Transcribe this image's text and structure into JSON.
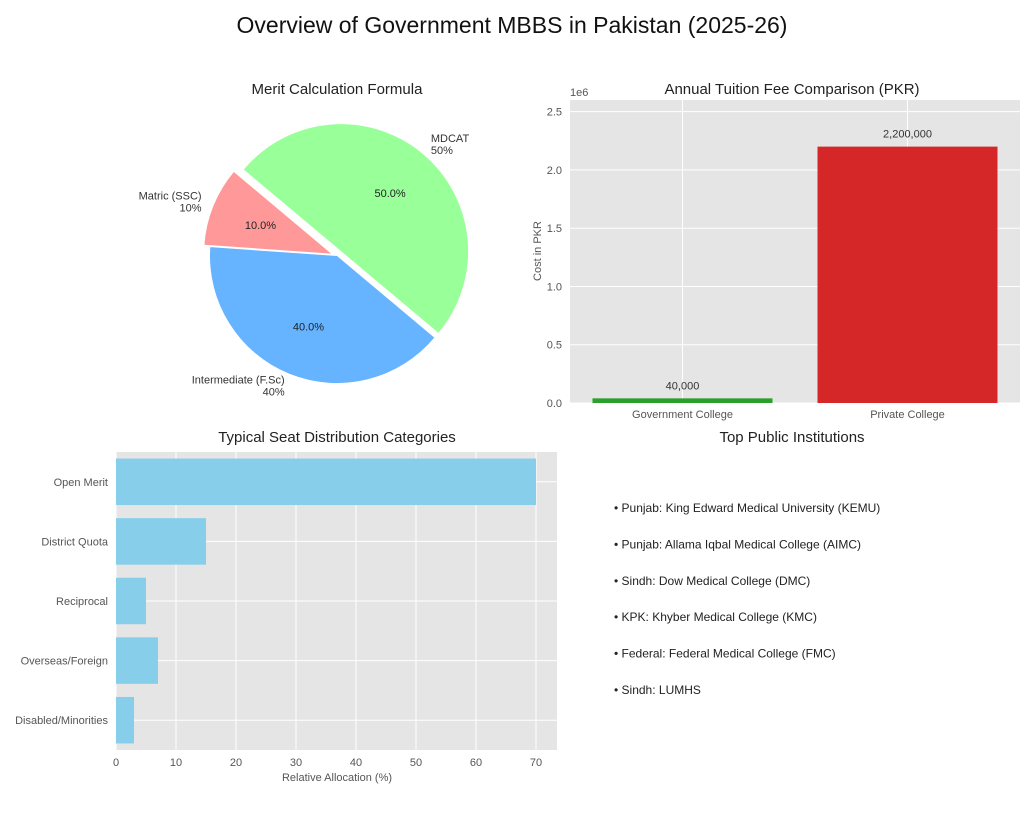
{
  "figure_title": "Overview of Government MBBS in Pakistan (2025-26)",
  "chart_data": [
    {
      "type": "pie",
      "title": "Merit Calculation Formula",
      "labels": [
        "Matric (SSC)",
        "Intermediate (F.Sc)",
        "MDCAT"
      ],
      "label_percents": [
        "10%",
        "40%",
        "50%"
      ],
      "values": [
        10,
        40,
        50
      ],
      "autopct_labels": [
        "10.0%",
        "40.0%",
        "50.0%"
      ],
      "colors": [
        "#ff9999",
        "#66b3ff",
        "#99ff99"
      ],
      "explode": [
        0.05,
        0,
        0.05
      ],
      "startangle": 140
    },
    {
      "type": "bar",
      "title": "Annual Tuition Fee Comparison (PKR)",
      "categories": [
        "Government College",
        "Private College"
      ],
      "values": [
        40000,
        2200000
      ],
      "data_labels": [
        "40,000",
        "2,200,000"
      ],
      "colors": [
        "#2ca02c",
        "#d62728"
      ],
      "ylabel": "Cost in PKR",
      "xlabel": "",
      "offset_label": "1e6",
      "ylim": [
        0,
        2.6
      ],
      "yticks": [
        0,
        0.5,
        1.0,
        1.5,
        2.0,
        2.5
      ],
      "ytick_labels": [
        "0.0",
        "0.5",
        "1.0",
        "1.5",
        "2.0",
        "2.5"
      ],
      "grid": true
    },
    {
      "type": "bar",
      "orientation": "horizontal",
      "title": "Typical Seat Distribution Categories",
      "categories": [
        "Open Merit",
        "District Quota",
        "Reciprocal",
        "Overseas/Foreign",
        "Disabled/Minorities"
      ],
      "values": [
        70,
        15,
        5,
        7,
        3
      ],
      "color": "#87ceeb",
      "xlabel": "Relative Allocation (%)",
      "ylabel": "",
      "xlim": [
        0,
        73.5
      ],
      "xticks": [
        0,
        10,
        20,
        30,
        40,
        50,
        60,
        70
      ],
      "grid": true
    }
  ],
  "institutions": {
    "title": "Top Public Institutions",
    "items": [
      "• Punjab: King Edward Medical University (KEMU)",
      "• Punjab: Allama Iqbal Medical College (AIMC)",
      "• Sindh: Dow Medical College (DMC)",
      "• KPK: Khyber Medical College (KMC)",
      "• Federal: Federal Medical College (FMC)",
      "• Sindh: LUMHS"
    ]
  }
}
